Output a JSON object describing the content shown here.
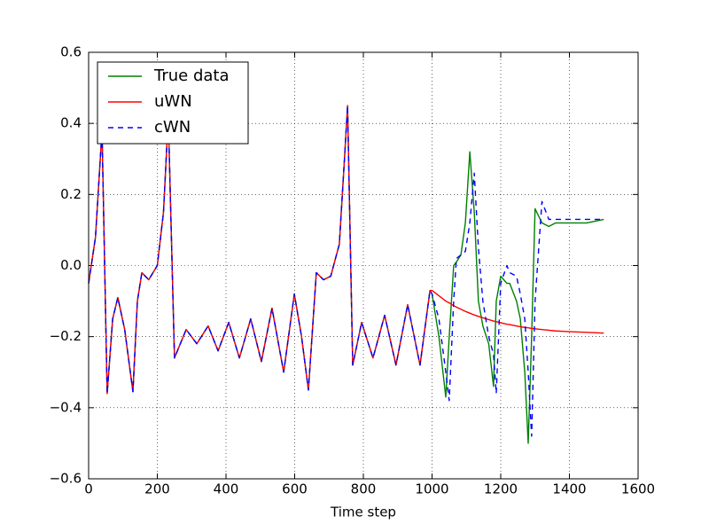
{
  "chart_data": {
    "type": "line",
    "xlabel": "Time step",
    "x": [
      0,
      20,
      39,
      54,
      70,
      85,
      105,
      129,
      142,
      155,
      175,
      200,
      218,
      232,
      250,
      284,
      315,
      348,
      377,
      408,
      439,
      472,
      503,
      534,
      568,
      599,
      620,
      640,
      663,
      684,
      705,
      730,
      745,
      754,
      769,
      795,
      828,
      862,
      895,
      929,
      965,
      994,
      1000,
      1020,
      1040,
      1050,
      1063,
      1071,
      1084,
      1097,
      1110,
      1123,
      1135,
      1148,
      1165,
      1179,
      1187,
      1200,
      1218,
      1226,
      1246,
      1257,
      1270,
      1280,
      1290,
      1300,
      1320,
      1340,
      1360,
      1400,
      1450,
      1500
    ],
    "series": [
      {
        "name": "True data",
        "color": "#008000",
        "linestyle": "solid",
        "values": [
          -0.05,
          0.08,
          0.38,
          -0.36,
          -0.15,
          -0.09,
          -0.18,
          -0.355,
          -0.1,
          -0.02,
          -0.04,
          0.0,
          0.15,
          0.42,
          -0.26,
          -0.18,
          -0.22,
          -0.17,
          -0.24,
          -0.16,
          -0.26,
          -0.15,
          -0.27,
          -0.12,
          -0.3,
          -0.08,
          -0.2,
          -0.35,
          -0.02,
          -0.04,
          -0.03,
          0.06,
          0.3,
          0.45,
          -0.28,
          -0.16,
          -0.26,
          -0.14,
          -0.28,
          -0.11,
          -0.28,
          -0.07,
          -0.08,
          -0.2,
          -0.37,
          -0.2,
          0.0,
          0.01,
          0.03,
          0.12,
          0.32,
          0.15,
          -0.1,
          -0.17,
          -0.22,
          -0.34,
          -0.1,
          -0.03,
          -0.05,
          -0.05,
          -0.1,
          -0.15,
          -0.3,
          -0.5,
          -0.2,
          0.16,
          0.12,
          0.11,
          0.12,
          0.12,
          0.12,
          0.13
        ]
      },
      {
        "name": "uWN",
        "color": "#ff0000",
        "linestyle": "solid",
        "values": [
          -0.05,
          0.08,
          0.38,
          -0.36,
          -0.15,
          -0.09,
          -0.18,
          -0.355,
          -0.1,
          -0.02,
          -0.04,
          0.0,
          0.15,
          0.42,
          -0.26,
          -0.18,
          -0.22,
          -0.17,
          -0.24,
          -0.16,
          -0.26,
          -0.15,
          -0.27,
          -0.12,
          -0.3,
          -0.08,
          -0.2,
          -0.35,
          -0.02,
          -0.04,
          -0.03,
          0.06,
          0.3,
          0.45,
          -0.28,
          -0.16,
          -0.26,
          -0.14,
          -0.28,
          -0.11,
          -0.28,
          -0.07,
          -0.07,
          -0.085,
          -0.1,
          -0.105,
          -0.113,
          -0.117,
          -0.123,
          -0.129,
          -0.134,
          -0.139,
          -0.143,
          -0.147,
          -0.152,
          -0.156,
          -0.158,
          -0.161,
          -0.165,
          -0.166,
          -0.17,
          -0.172,
          -0.174,
          -0.175,
          -0.177,
          -0.178,
          -0.18,
          -0.182,
          -0.184,
          -0.186,
          -0.188,
          -0.19
        ]
      },
      {
        "name": "cWN",
        "color": "#0000ff",
        "linestyle": "dashed",
        "values": [
          -0.05,
          0.08,
          0.38,
          -0.36,
          -0.15,
          -0.09,
          -0.18,
          -0.355,
          -0.1,
          -0.02,
          -0.04,
          0.0,
          0.15,
          0.42,
          -0.26,
          -0.18,
          -0.22,
          -0.17,
          -0.24,
          -0.16,
          -0.26,
          -0.15,
          -0.27,
          -0.12,
          -0.3,
          -0.08,
          -0.2,
          -0.35,
          -0.02,
          -0.04,
          -0.03,
          0.06,
          0.3,
          0.45,
          -0.28,
          -0.16,
          -0.26,
          -0.14,
          -0.28,
          -0.11,
          -0.28,
          -0.07,
          -0.08,
          -0.15,
          -0.3,
          -0.38,
          -0.1,
          0.02,
          0.03,
          0.04,
          0.12,
          0.26,
          0.05,
          -0.1,
          -0.2,
          -0.25,
          -0.36,
          -0.05,
          0.0,
          -0.02,
          -0.03,
          -0.08,
          -0.15,
          -0.3,
          -0.48,
          -0.1,
          0.18,
          0.13,
          0.13,
          0.13,
          0.13,
          0.13
        ]
      }
    ],
    "xlim": [
      0,
      1600
    ],
    "xticks": [
      0,
      200,
      400,
      600,
      800,
      1000,
      1200,
      1400,
      1600
    ],
    "ylim": [
      -0.6,
      0.6
    ],
    "yticks": [
      {
        "value": -0.6,
        "label": "−0.6"
      },
      {
        "value": -0.4,
        "label": "−0.4"
      },
      {
        "value": -0.2,
        "label": "−0.2"
      },
      {
        "value": 0.0,
        "label": "0.0"
      },
      0.2,
      0.4,
      0.6
    ],
    "grid": true,
    "legend": "upper left"
  }
}
